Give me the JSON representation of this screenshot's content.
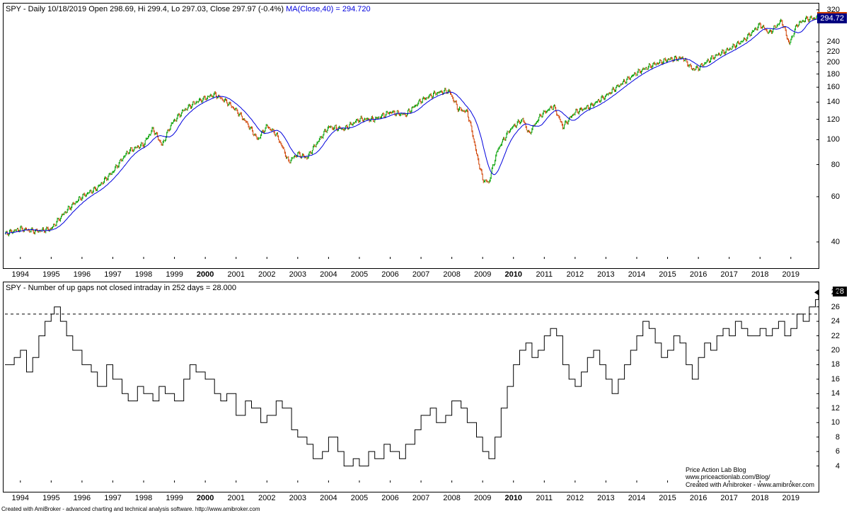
{
  "top_chart": {
    "title_prefix": "SPY - Daily 10/18/2019 Open 298.69, Hi 299.4, Lo 297.03, Close 297.97 (-0.4%) ",
    "title_ma": "MA(Close,40)",
    "title_ma_value": " = 294.720",
    "type": "candlestick_with_ma",
    "x_range": [
      1993.5,
      2019.9
    ],
    "y_scale": "log",
    "y_ticks": [
      40,
      60,
      80,
      100,
      120,
      140,
      160,
      180,
      200,
      220,
      240,
      320
    ],
    "x_ticks": [
      1994,
      1995,
      1996,
      1997,
      1998,
      1999,
      2000,
      2001,
      2002,
      2003,
      2004,
      2005,
      2006,
      2007,
      2008,
      2009,
      2010,
      2011,
      2012,
      2013,
      2014,
      2015,
      2016,
      2017,
      2018,
      2019
    ],
    "x_bold": [
      2000,
      2010
    ],
    "close_value": 297.97,
    "ma_value": 294.72,
    "colors": {
      "up_candle": "#00a000",
      "down_candle": "#d04000",
      "ma_line": "#0000dd",
      "close_badge_bg": "#d04000",
      "ma_badge_bg": "#000080",
      "background": "#ffffff",
      "border": "#000000"
    },
    "price_path": [
      [
        1993.5,
        43
      ],
      [
        1994,
        45
      ],
      [
        1994.5,
        44
      ],
      [
        1995,
        45
      ],
      [
        1995.5,
        53
      ],
      [
        1996,
        60
      ],
      [
        1996.5,
        65
      ],
      [
        1997,
        75
      ],
      [
        1997.5,
        90
      ],
      [
        1998,
        96
      ],
      [
        1998.3,
        110
      ],
      [
        1998.6,
        95
      ],
      [
        1998.9,
        115
      ],
      [
        1999.3,
        130
      ],
      [
        1999.7,
        140
      ],
      [
        2000,
        145
      ],
      [
        2000.3,
        150
      ],
      [
        2000.7,
        140
      ],
      [
        2001,
        130
      ],
      [
        2001.3,
        118
      ],
      [
        2001.7,
        100
      ],
      [
        2002,
        113
      ],
      [
        2002.3,
        105
      ],
      [
        2002.7,
        82
      ],
      [
        2003,
        88
      ],
      [
        2003.3,
        85
      ],
      [
        2003.7,
        100
      ],
      [
        2004,
        112
      ],
      [
        2004.5,
        110
      ],
      [
        2005,
        120
      ],
      [
        2005.5,
        120
      ],
      [
        2006,
        128
      ],
      [
        2006.5,
        125
      ],
      [
        2007,
        142
      ],
      [
        2007.5,
        152
      ],
      [
        2007.9,
        155
      ],
      [
        2008.2,
        132
      ],
      [
        2008.5,
        128
      ],
      [
        2008.8,
        88
      ],
      [
        2009,
        70
      ],
      [
        2009.2,
        68
      ],
      [
        2009.5,
        92
      ],
      [
        2009.9,
        110
      ],
      [
        2010.3,
        120
      ],
      [
        2010.5,
        105
      ],
      [
        2010.9,
        125
      ],
      [
        2011.3,
        135
      ],
      [
        2011.6,
        112
      ],
      [
        2012,
        128
      ],
      [
        2012.5,
        135
      ],
      [
        2013,
        148
      ],
      [
        2013.5,
        165
      ],
      [
        2014,
        182
      ],
      [
        2014.5,
        195
      ],
      [
        2015,
        205
      ],
      [
        2015.5,
        208
      ],
      [
        2015.8,
        188
      ],
      [
        2016,
        190
      ],
      [
        2016.5,
        210
      ],
      [
        2017,
        225
      ],
      [
        2017.5,
        245
      ],
      [
        2018,
        280
      ],
      [
        2018.3,
        260
      ],
      [
        2018.7,
        290
      ],
      [
        2018.95,
        235
      ],
      [
        2019.2,
        280
      ],
      [
        2019.5,
        295
      ],
      [
        2019.9,
        298
      ]
    ]
  },
  "bottom_chart": {
    "title": "SPY - Number of up gaps not closed intraday in 252 days = 28.000",
    "type": "step_line",
    "x_range": [
      1993.5,
      2019.9
    ],
    "y_ticks": [
      4,
      6,
      8,
      10,
      12,
      14,
      16,
      18,
      20,
      22,
      24,
      26,
      28
    ],
    "x_ticks": [
      1994,
      1995,
      1996,
      1997,
      1998,
      1999,
      2000,
      2001,
      2002,
      2003,
      2004,
      2005,
      2006,
      2007,
      2008,
      2009,
      2010,
      2011,
      2012,
      2013,
      2014,
      2015,
      2016,
      2017,
      2018,
      2019
    ],
    "x_bold": [
      2000,
      2010
    ],
    "current_value": 28,
    "dashed_line_at": 25,
    "colors": {
      "line": "#000000",
      "badge_bg": "#000000",
      "background": "#ffffff",
      "border": "#000000",
      "dashed": "#000000"
    },
    "data": [
      [
        1993.5,
        18
      ],
      [
        1993.8,
        19
      ],
      [
        1994,
        20
      ],
      [
        1994.2,
        17
      ],
      [
        1994.4,
        19
      ],
      [
        1994.6,
        22
      ],
      [
        1994.8,
        24
      ],
      [
        1995,
        25
      ],
      [
        1995.1,
        26
      ],
      [
        1995.3,
        24
      ],
      [
        1995.5,
        22
      ],
      [
        1995.7,
        20
      ],
      [
        1996,
        18
      ],
      [
        1996.3,
        17
      ],
      [
        1996.5,
        15
      ],
      [
        1996.8,
        18
      ],
      [
        1997,
        16
      ],
      [
        1997.3,
        14
      ],
      [
        1997.5,
        13
      ],
      [
        1997.8,
        15
      ],
      [
        1998,
        14
      ],
      [
        1998.3,
        13
      ],
      [
        1998.5,
        15
      ],
      [
        1998.7,
        14
      ],
      [
        1999,
        13
      ],
      [
        1999.3,
        16
      ],
      [
        1999.5,
        18
      ],
      [
        1999.7,
        17
      ],
      [
        2000,
        16
      ],
      [
        2000.3,
        14
      ],
      [
        2000.5,
        13
      ],
      [
        2000.7,
        14
      ],
      [
        2001,
        11
      ],
      [
        2001.3,
        13
      ],
      [
        2001.5,
        12
      ],
      [
        2001.8,
        10
      ],
      [
        2002,
        11
      ],
      [
        2002.3,
        13
      ],
      [
        2002.5,
        12
      ],
      [
        2002.8,
        9
      ],
      [
        2003,
        8
      ],
      [
        2003.3,
        7
      ],
      [
        2003.5,
        5
      ],
      [
        2003.8,
        6
      ],
      [
        2004,
        8
      ],
      [
        2004.3,
        6
      ],
      [
        2004.5,
        4
      ],
      [
        2004.8,
        5
      ],
      [
        2005,
        4
      ],
      [
        2005.3,
        6
      ],
      [
        2005.5,
        5
      ],
      [
        2005.8,
        7
      ],
      [
        2006,
        6
      ],
      [
        2006.3,
        5
      ],
      [
        2006.5,
        7
      ],
      [
        2006.8,
        9
      ],
      [
        2007,
        11
      ],
      [
        2007.3,
        12
      ],
      [
        2007.5,
        10
      ],
      [
        2007.8,
        11
      ],
      [
        2008,
        13
      ],
      [
        2008.3,
        12
      ],
      [
        2008.5,
        10
      ],
      [
        2008.8,
        8
      ],
      [
        2009,
        6
      ],
      [
        2009.2,
        5
      ],
      [
        2009.4,
        8
      ],
      [
        2009.6,
        12
      ],
      [
        2009.8,
        15
      ],
      [
        2010,
        18
      ],
      [
        2010.2,
        20
      ],
      [
        2010.4,
        21
      ],
      [
        2010.6,
        19
      ],
      [
        2010.8,
        20
      ],
      [
        2011,
        22
      ],
      [
        2011.2,
        23
      ],
      [
        2011.4,
        22
      ],
      [
        2011.6,
        18
      ],
      [
        2011.8,
        16
      ],
      [
        2012,
        15
      ],
      [
        2012.2,
        17
      ],
      [
        2012.4,
        19
      ],
      [
        2012.6,
        20
      ],
      [
        2012.8,
        18
      ],
      [
        2013,
        16
      ],
      [
        2013.2,
        14
      ],
      [
        2013.4,
        16
      ],
      [
        2013.6,
        18
      ],
      [
        2013.8,
        20
      ],
      [
        2014,
        22
      ],
      [
        2014.2,
        24
      ],
      [
        2014.4,
        23
      ],
      [
        2014.6,
        21
      ],
      [
        2014.8,
        19
      ],
      [
        2015,
        20
      ],
      [
        2015.2,
        22
      ],
      [
        2015.4,
        21
      ],
      [
        2015.6,
        18
      ],
      [
        2015.8,
        16
      ],
      [
        2016,
        19
      ],
      [
        2016.2,
        21
      ],
      [
        2016.4,
        20
      ],
      [
        2016.6,
        22
      ],
      [
        2016.8,
        23
      ],
      [
        2017,
        22
      ],
      [
        2017.2,
        24
      ],
      [
        2017.4,
        23
      ],
      [
        2017.6,
        22
      ],
      [
        2017.8,
        22
      ],
      [
        2018,
        23
      ],
      [
        2018.2,
        22
      ],
      [
        2018.4,
        23
      ],
      [
        2018.6,
        24
      ],
      [
        2018.8,
        22
      ],
      [
        2019,
        23
      ],
      [
        2019.2,
        25
      ],
      [
        2019.4,
        24
      ],
      [
        2019.6,
        26
      ],
      [
        2019.8,
        27
      ],
      [
        2019.9,
        28
      ]
    ]
  },
  "attribution": {
    "line1": "Price Action Lab Blog",
    "line2": "www.priceactionlab.com/Blog/",
    "line3": "Created with Amibroker - www.amibroker.com"
  },
  "footer": "Created with AmiBroker - advanced charting and technical analysis software. http://www.amibroker.com"
}
